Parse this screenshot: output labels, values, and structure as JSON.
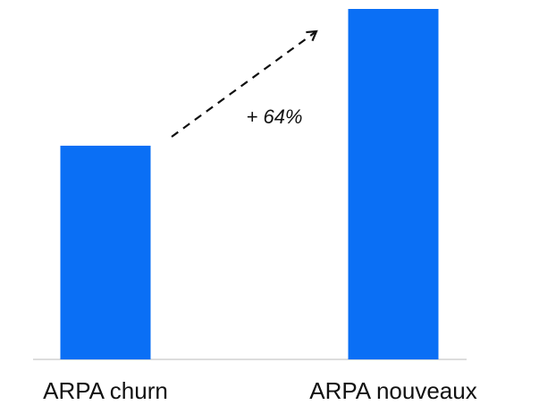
{
  "chart_data": {
    "type": "bar",
    "categories": [
      "ARPA churn",
      "ARPA nouveaux"
    ],
    "values": [
      100,
      164
    ],
    "ylim": [
      0,
      164
    ],
    "title": "",
    "xlabel": "",
    "ylabel": "",
    "grid": false,
    "bar_color": "#0a6ff5",
    "baseline_color": "#dddddd",
    "annotation": {
      "text": "+ 64%",
      "from_category": "ARPA churn",
      "to_category": "ARPA nouveaux",
      "style": "dashed-arrow"
    }
  }
}
